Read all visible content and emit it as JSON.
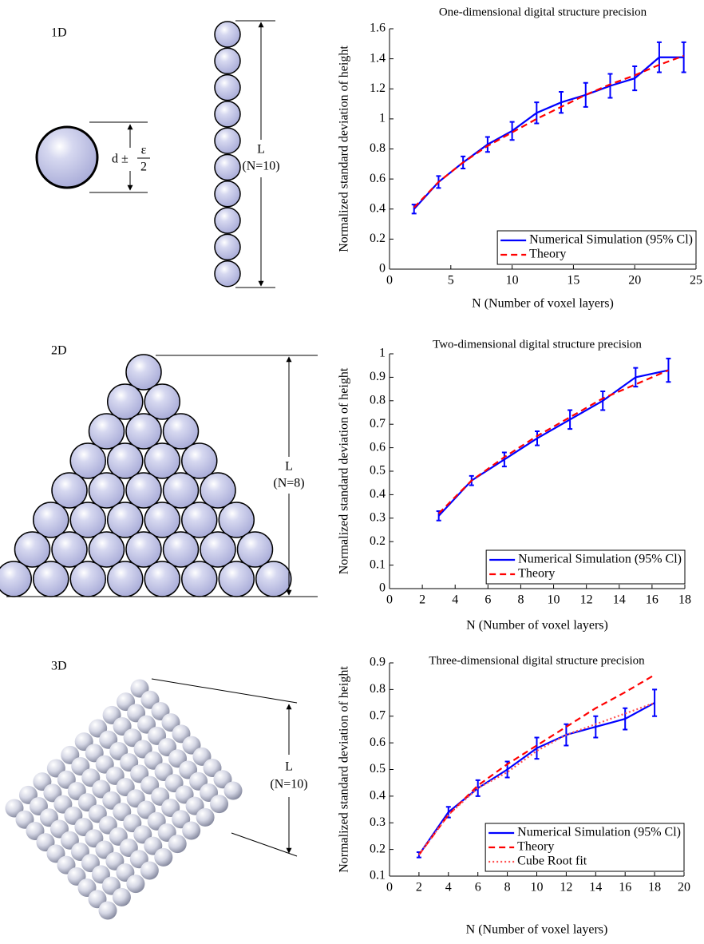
{
  "diagrams": {
    "one_d": {
      "label": "1D",
      "diameter_label": "d ±",
      "epsilon": "ε",
      "denominator": "2",
      "length_label": "L",
      "count_label": "(N=10)"
    },
    "two_d": {
      "label": "2D",
      "length_label": "L",
      "count_label": "(N=8)"
    },
    "three_d": {
      "label": "3D",
      "length_label": "L",
      "count_label": "(N=10)"
    }
  },
  "chart_data": [
    {
      "type": "line",
      "title": "One-dimensional digital structure precision",
      "x_label": "N (Number of voxel layers)",
      "y_label": "Normalized standard deviation of height",
      "x": [
        2,
        4,
        6,
        8,
        10,
        12,
        14,
        16,
        18,
        20,
        22,
        24
      ],
      "series": [
        {
          "name": "Numerical Simulation (95% Cl)",
          "color": "#0000ff",
          "style": "solid",
          "values": [
            0.4,
            0.58,
            0.71,
            0.83,
            0.92,
            1.04,
            1.11,
            1.16,
            1.22,
            1.27,
            1.41,
            1.41
          ],
          "errors": [
            0.03,
            0.04,
            0.04,
            0.05,
            0.06,
            0.07,
            0.07,
            0.08,
            0.08,
            0.08,
            0.1,
            0.1
          ]
        },
        {
          "name": "Theory",
          "color": "#ff0000",
          "style": "dashed",
          "values": [
            0.41,
            0.58,
            0.71,
            0.82,
            0.91,
            1.0,
            1.08,
            1.16,
            1.23,
            1.29,
            1.36,
            1.42
          ]
        }
      ],
      "xlim": [
        0,
        25
      ],
      "xticks": [
        0,
        5,
        10,
        15,
        20,
        25
      ],
      "ylim": [
        0,
        1.6
      ],
      "yticks": [
        0,
        0.2,
        0.4,
        0.6,
        0.8,
        1,
        1.2,
        1.4,
        1.6
      ],
      "legend": "lower right"
    },
    {
      "type": "line",
      "title": "Two-dimensional digital structure precision",
      "x_label": "N (Number of voxel layers)",
      "y_label": "Normalized standard deviation of height",
      "x": [
        3,
        5,
        7,
        9,
        11,
        13,
        15,
        17
      ],
      "series": [
        {
          "name": "Numerical Simulation (95% Cl)",
          "color": "#0000ff",
          "style": "solid",
          "values": [
            0.31,
            0.46,
            0.55,
            0.64,
            0.72,
            0.8,
            0.9,
            0.93
          ],
          "errors": [
            0.02,
            0.02,
            0.03,
            0.03,
            0.04,
            0.04,
            0.04,
            0.05
          ]
        },
        {
          "name": "Theory",
          "color": "#ff0000",
          "style": "dashed",
          "values": [
            0.32,
            0.46,
            0.56,
            0.65,
            0.73,
            0.81,
            0.87,
            0.93
          ]
        }
      ],
      "xlim": [
        0,
        18
      ],
      "xticks": [
        0,
        2,
        4,
        6,
        8,
        10,
        12,
        14,
        16,
        18
      ],
      "ylim": [
        0,
        1
      ],
      "yticks": [
        0,
        0.1,
        0.2,
        0.3,
        0.4,
        0.5,
        0.6,
        0.7,
        0.8,
        0.9,
        1
      ],
      "legend": "lower right"
    },
    {
      "type": "line",
      "title": "Three-dimensional digital structure precision",
      "x_label": "N (Number of voxel layers)",
      "y_label": "Normalized standard deviation of height",
      "x": [
        2,
        4,
        6,
        8,
        10,
        12,
        14,
        16,
        18
      ],
      "series": [
        {
          "name": "Numerical Simulation (95% Cl)",
          "color": "#0000ff",
          "style": "solid",
          "values": [
            0.18,
            0.34,
            0.43,
            0.5,
            0.58,
            0.63,
            0.66,
            0.69,
            0.75
          ],
          "errors": [
            0.01,
            0.02,
            0.03,
            0.03,
            0.04,
            0.04,
            0.04,
            0.04,
            0.05
          ]
        },
        {
          "name": "Theory",
          "color": "#ff0000",
          "style": "dashed",
          "values": [
            0.18,
            0.33,
            0.44,
            0.52,
            0.59,
            0.66,
            0.73,
            0.79,
            0.855
          ]
        },
        {
          "name": "Cube Root fit",
          "color": "#ff5050",
          "style": "dotted",
          "values": [
            0.18,
            0.33,
            0.43,
            0.49,
            0.57,
            0.63,
            0.67,
            0.71,
            0.75
          ]
        }
      ],
      "xlim": [
        0,
        20
      ],
      "xticks": [
        0,
        2,
        4,
        6,
        8,
        10,
        12,
        14,
        16,
        18,
        20
      ],
      "ylim": [
        0.1,
        0.9
      ],
      "yticks": [
        0.1,
        0.2,
        0.3,
        0.4,
        0.5,
        0.6,
        0.7,
        0.8,
        0.9
      ],
      "legend": "lower right"
    }
  ]
}
